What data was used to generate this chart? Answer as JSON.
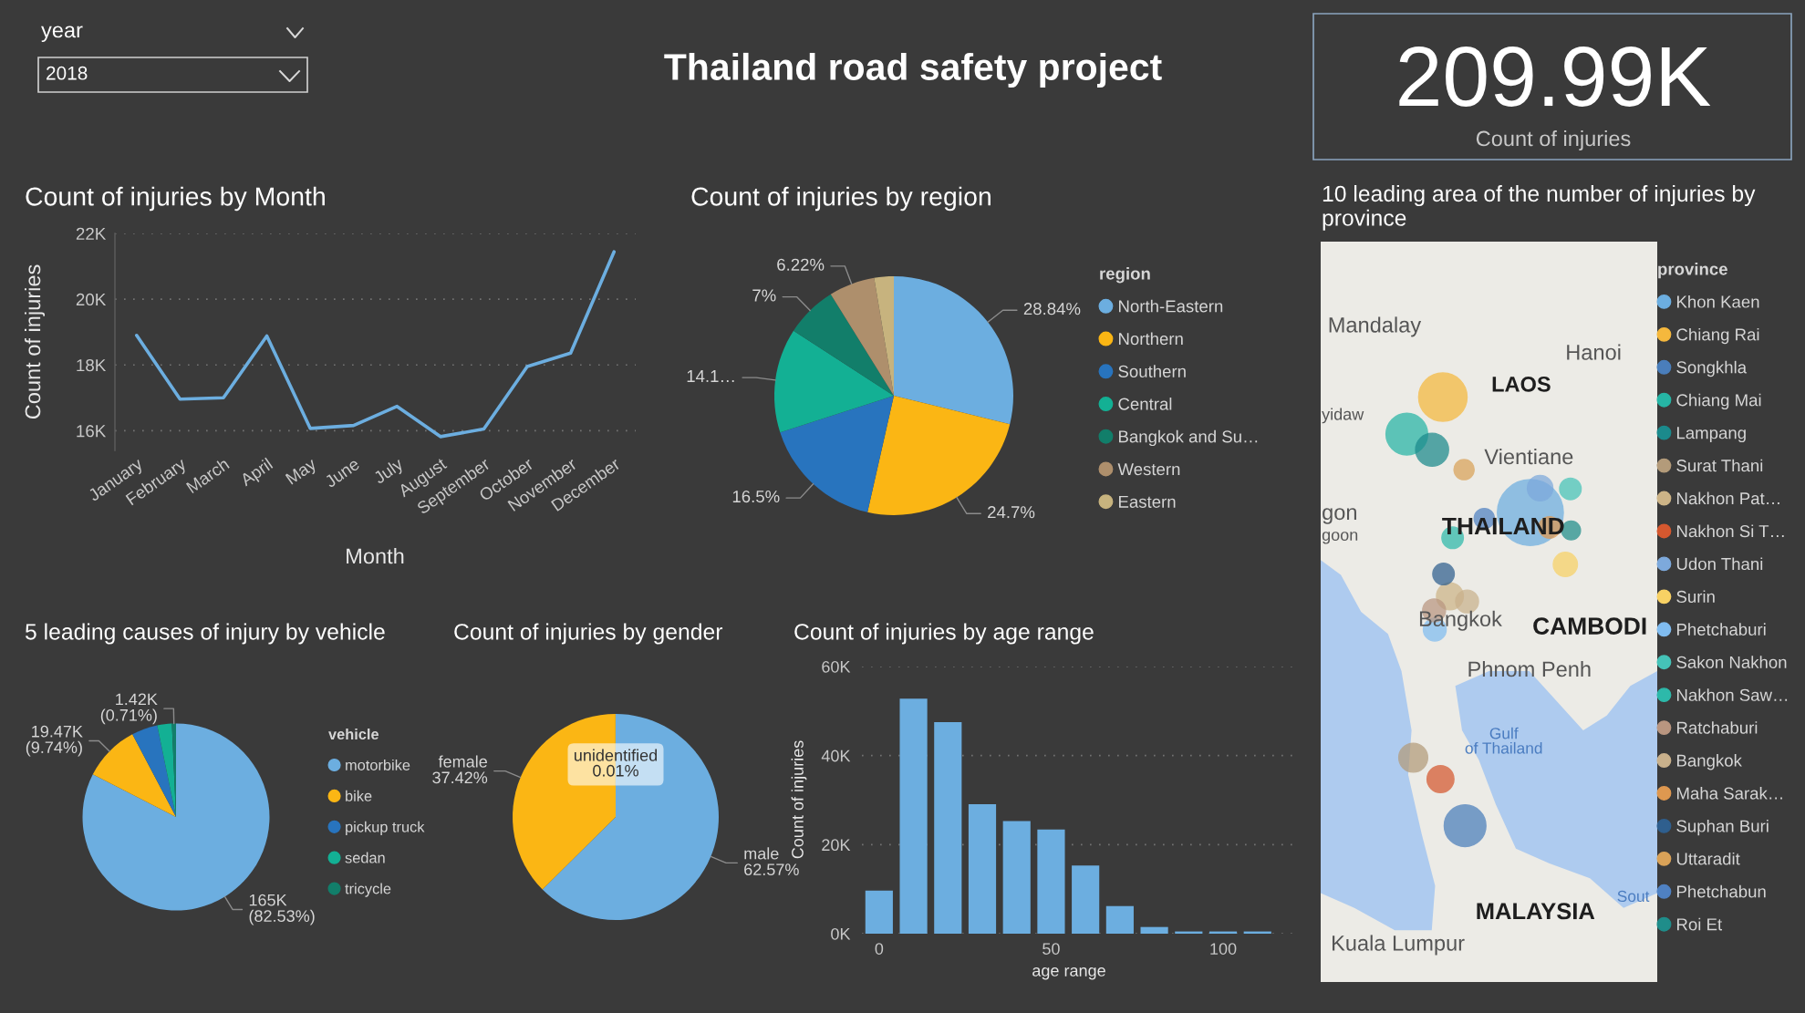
{
  "chart_data": [
    {
      "type": "other",
      "title": "year",
      "annotations": [
        "2018"
      ]
    },
    {
      "type": "other",
      "title": "Thailand road safety project"
    },
    {
      "type": "other",
      "annotations": [
        "209.99K",
        "Count of injuries"
      ]
    },
    {
      "type": "line",
      "title": "Count of injuries by Month",
      "xlabel": "Month",
      "ylabel": "Count of injuries",
      "categories": [
        "January",
        "February",
        "March",
        "April",
        "May",
        "June",
        "July",
        "August",
        "September",
        "October",
        "November",
        "December"
      ],
      "values": [
        18900,
        16960,
        17000,
        18880,
        16070,
        16160,
        16740,
        15820,
        16050,
        17950,
        18360,
        21440
      ],
      "color": "#6CAEE0",
      "ylim": [
        15400,
        22000
      ],
      "yticks": [
        {
          "value": 16000,
          "label": "16K"
        },
        {
          "value": 18000,
          "label": "18K"
        },
        {
          "value": 20000,
          "label": "20K"
        },
        {
          "value": 22000,
          "label": "22K"
        }
      ],
      "grid": "y"
    },
    {
      "type": "pie",
      "title": "Count of injuries by region",
      "legend_title": "region",
      "legend": "right",
      "categories": [
        "North-Eastern",
        "Northern",
        "Southern",
        "Central",
        "Bangkok and Su…",
        "Western",
        "Eastern"
      ],
      "values": [
        28.84,
        24.7,
        16.5,
        14.1,
        7,
        6.22,
        2.64
      ],
      "colors": [
        "#6CAEE0",
        "#FBB614",
        "#2874BE",
        "#13B094",
        "#127E6A",
        "#AE8F6C",
        "#C7B37E"
      ],
      "value_labels": [
        "28.84%",
        "24.7%",
        "16.5%",
        "14.1…",
        "7%",
        "6.22%",
        null
      ]
    },
    {
      "type": "other",
      "title": "10 leading area of the number of injuries by province",
      "legend_title": "province",
      "categories": [
        "Khon Kaen",
        "Chiang Rai",
        "Songkhla",
        "Chiang Mai",
        "Lampang",
        "Surat Thani",
        "Nakhon Pat…",
        "Nakhon Si T…",
        "Udon Thani",
        "Surin",
        "Phetchaburi",
        "Sakon Nakhon",
        "Nakhon Saw…",
        "Ratchaburi",
        "Bangkok",
        "Maha Sarak…",
        "Suphan Buri",
        "Uttaradit",
        "Phetchabun",
        "Roi Et"
      ],
      "colors": [
        "#6CAEE0",
        "#F5B83D",
        "#4A7EBB",
        "#26B5A5",
        "#1B8A8C",
        "#B39B7A",
        "#CDB487",
        "#D5582F",
        "#7DA9DC",
        "#F8D164",
        "#80BCF0",
        "#45C3B8",
        "#2DB9AA",
        "#B99680",
        "#C9B18C",
        "#DE9850",
        "#2F5F8E",
        "#D9A258",
        "#4F81C2",
        "#1F8D8A"
      ],
      "annotations": [
        "Mandalay",
        "yidaw",
        "gon",
        "goon",
        "Hanoi",
        "LAOS",
        "Vientiane",
        "THAILAND",
        "Bangkok",
        "CAMBODI",
        "Phnom Penh",
        "Gulf\nof Thailand",
        "Sout",
        "MALAYSIA",
        "Kuala Lumpur"
      ]
    },
    {
      "type": "pie",
      "title": "5 leading causes of injury by vehicle",
      "legend_title": "vehicle",
      "legend": "right",
      "categories": [
        "motorbike",
        "bike",
        "pickup truck",
        "sedan",
        "tricycle"
      ],
      "values": [
        82.53,
        9.74,
        4.5,
        2.52,
        0.71
      ],
      "colors": [
        "#6CAEE0",
        "#FBB614",
        "#2874BE",
        "#13B094",
        "#127E6A"
      ],
      "value_labels": [
        "165K\n(82.53%)",
        "19.47K\n(9.74%)",
        null,
        null,
        "1.42K\n(0.71%)"
      ]
    },
    {
      "type": "pie",
      "title": "Count of injuries by gender",
      "categories": [
        "male",
        "female",
        "unidentified"
      ],
      "values": [
        62.57,
        37.42,
        0.01
      ],
      "colors": [
        "#6CAEE0",
        "#FBB614",
        "#2874BE"
      ],
      "value_labels": [
        "62.57%",
        "37.42%",
        "0.01%"
      ]
    },
    {
      "type": "bar",
      "title": "Count of injuries by age range",
      "xlabel": "age range",
      "ylabel": "Count of injuries",
      "x": [
        0,
        10,
        20,
        30,
        40,
        50,
        60,
        70,
        80,
        90,
        100,
        110
      ],
      "values": [
        9700,
        52800,
        47500,
        29100,
        25300,
        23400,
        15300,
        6200,
        1500,
        500,
        500,
        500
      ],
      "color": "#6CAEE0",
      "xlim": [
        -5,
        122
      ],
      "xticks": [
        0,
        50,
        100
      ],
      "ylim": [
        0,
        60000
      ],
      "yticks": [
        {
          "value": 0,
          "label": "0K"
        },
        {
          "value": 20000,
          "label": "20K"
        },
        {
          "value": 40000,
          "label": "40K"
        },
        {
          "value": 60000,
          "label": "60K"
        }
      ],
      "grid": "y"
    }
  ]
}
